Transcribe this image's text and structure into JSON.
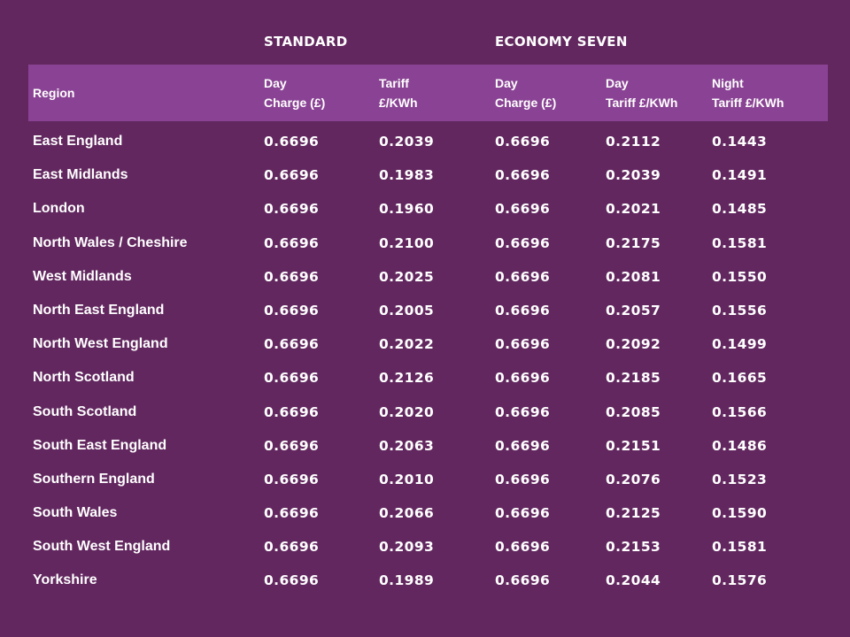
{
  "group_headers": {
    "standard": "STANDARD",
    "economy_seven": "ECONOMY SEVEN"
  },
  "columns": {
    "region": "Region",
    "std_day_charge": [
      "Day",
      "Charge (£)"
    ],
    "std_tariff": [
      "Tariff",
      "£/KWh"
    ],
    "e7_day_charge": [
      "Day",
      "Charge (£)"
    ],
    "e7_day_tariff": [
      "Day",
      "Tariff £/KWh"
    ],
    "e7_night_tariff": [
      "Night",
      "Tariff £/KWh"
    ]
  },
  "rows": [
    [
      "East England",
      "0.6696",
      "0.2039",
      "0.6696",
      "0.2112",
      "0.1443"
    ],
    [
      "East Midlands",
      "0.6696",
      "0.1983",
      "0.6696",
      "0.2039",
      "0.1491"
    ],
    [
      "London",
      "0.6696",
      "0.1960",
      "0.6696",
      "0.2021",
      "0.1485"
    ],
    [
      "North Wales / Cheshire",
      "0.6696",
      "0.2100",
      "0.6696",
      "0.2175",
      "0.1581"
    ],
    [
      "West Midlands",
      "0.6696",
      "0.2025",
      "0.6696",
      "0.2081",
      "0.1550"
    ],
    [
      "North East England",
      "0.6696",
      "0.2005",
      "0.6696",
      "0.2057",
      "0.1556"
    ],
    [
      "North West England",
      "0.6696",
      "0.2022",
      "0.6696",
      "0.2092",
      "0.1499"
    ],
    [
      "North Scotland",
      "0.6696",
      "0.2126",
      "0.6696",
      "0.2185",
      "0.1665"
    ],
    [
      "South Scotland",
      "0.6696",
      "0.2020",
      "0.6696",
      "0.2085",
      "0.1566"
    ],
    [
      "South East England",
      "0.6696",
      "0.2063",
      "0.6696",
      "0.2151",
      "0.1486"
    ],
    [
      "Southern England",
      "0.6696",
      "0.2010",
      "0.6696",
      "0.2076",
      "0.1523"
    ],
    [
      "South Wales",
      "0.6696",
      "0.2066",
      "0.6696",
      "0.2125",
      "0.1590"
    ],
    [
      "South West England",
      "0.6696",
      "0.2093",
      "0.6696",
      "0.2153",
      "0.1581"
    ],
    [
      "Yorkshire",
      "0.6696",
      "0.1989",
      "0.6696",
      "0.2044",
      "0.1576"
    ]
  ],
  "colors": {
    "background": "#62275f",
    "header_band": "#8a4394",
    "text": "#ffffff"
  }
}
